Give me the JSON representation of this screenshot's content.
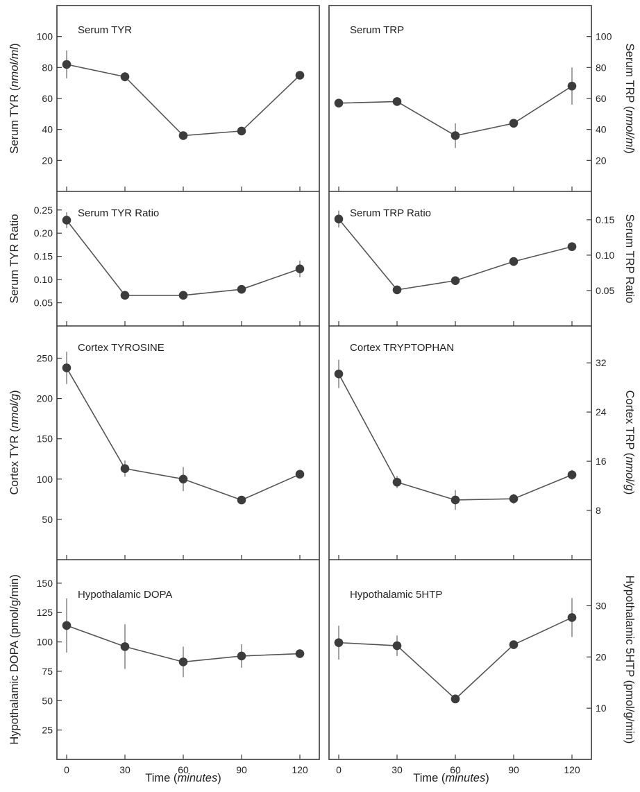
{
  "figure": {
    "x_axis_label": "Time",
    "x_axis_unit": "minutes"
  },
  "chart_data": [
    {
      "type": "line",
      "title": "Serum TYR",
      "ylabel": "Serum TYR (nmol/ml)",
      "x": [
        0,
        30,
        60,
        90,
        120
      ],
      "values": [
        82,
        74,
        36,
        39,
        75
      ],
      "error": [
        9,
        3,
        2,
        2,
        2
      ],
      "ylim": [
        0,
        120
      ],
      "yticks": [
        20,
        40,
        60,
        80,
        100
      ],
      "ytick_labels": [
        "20",
        "40",
        "60",
        "80",
        "100"
      ],
      "xlim": [
        -5,
        130
      ],
      "xticks": [
        0,
        30,
        60,
        90,
        120
      ]
    },
    {
      "type": "line",
      "title": "Serum TRP",
      "ylabel": "Serum TRP (nmol/ml)",
      "x": [
        0,
        30,
        60,
        90,
        120
      ],
      "values": [
        57,
        58,
        36,
        44,
        68
      ],
      "error": [
        2,
        2,
        8,
        2,
        12
      ],
      "ylim": [
        0,
        120
      ],
      "yticks": [
        20,
        40,
        60,
        80,
        100
      ],
      "ytick_labels": [
        "20",
        "40",
        "60",
        "80",
        "100"
      ],
      "xlim": [
        -5,
        130
      ],
      "xticks": [
        0,
        30,
        60,
        90,
        120
      ]
    },
    {
      "type": "line",
      "title": "Serum TYR Ratio",
      "ylabel": "Serum TYR Ratio",
      "x": [
        0,
        30,
        60,
        90,
        120
      ],
      "values": [
        0.228,
        0.066,
        0.066,
        0.079,
        0.123
      ],
      "error": [
        0.017,
        0.006,
        0.003,
        0.004,
        0.018
      ],
      "ylim": [
        0,
        0.29
      ],
      "yticks": [
        0.05,
        0.1,
        0.15,
        0.2,
        0.25
      ],
      "ytick_labels": [
        "0.05",
        "0.10",
        "0.15",
        "0.20",
        "0.25"
      ],
      "xlim": [
        -5,
        130
      ],
      "xticks": [
        0,
        30,
        60,
        90,
        120
      ]
    },
    {
      "type": "line",
      "title": "Serum TRP Ratio",
      "ylabel": "Serum TRP Ratio",
      "x": [
        0,
        30,
        60,
        90,
        120
      ],
      "values": [
        0.151,
        0.051,
        0.064,
        0.091,
        0.112
      ],
      "error": [
        0.012,
        0.003,
        0.006,
        0.003,
        0.003
      ],
      "ylim": [
        0,
        0.19
      ],
      "yticks": [
        0.05,
        0.1,
        0.15
      ],
      "ytick_labels": [
        "0.05",
        "0.10",
        "0.15"
      ],
      "xlim": [
        -5,
        130
      ],
      "xticks": [
        0,
        30,
        60,
        90,
        120
      ]
    },
    {
      "type": "line",
      "title": "Cortex TYROSINE",
      "ylabel": "Cortex TYR (nmol/g)",
      "x": [
        0,
        30,
        60,
        90,
        120
      ],
      "values": [
        238,
        113,
        100,
        74,
        106
      ],
      "error": [
        20,
        10,
        15,
        5,
        5
      ],
      "ylim": [
        0,
        290
      ],
      "yticks": [
        50,
        100,
        150,
        200,
        250
      ],
      "ytick_labels": [
        "50",
        "100",
        "150",
        "200",
        "250"
      ],
      "xlim": [
        -5,
        130
      ],
      "xticks": [
        0,
        30,
        60,
        90,
        120
      ]
    },
    {
      "type": "line",
      "title": "Cortex TRYPTOPHAN",
      "ylabel": "Cortex TRP (nmol/g)",
      "x": [
        0,
        30,
        60,
        90,
        120
      ],
      "values": [
        30.2,
        12.6,
        9.7,
        9.9,
        13.8
      ],
      "error": [
        2.3,
        1.0,
        1.6,
        0.8,
        0.8
      ],
      "ylim": [
        0,
        38
      ],
      "yticks": [
        8,
        16,
        24,
        32
      ],
      "ytick_labels": [
        "8",
        "16",
        "24",
        "32"
      ],
      "xlim": [
        -5,
        130
      ],
      "xticks": [
        0,
        30,
        60,
        90,
        120
      ]
    },
    {
      "type": "line",
      "title": "Hypothalamic DOPA",
      "ylabel": "Hypothalamic DOPA  (pmol/g/min)",
      "x": [
        0,
        30,
        60,
        90,
        120
      ],
      "values": [
        114,
        96,
        83,
        88,
        90
      ],
      "error": [
        23,
        19,
        13,
        10,
        3
      ],
      "ylim": [
        0,
        170
      ],
      "yticks": [
        25,
        50,
        75,
        100,
        125,
        150
      ],
      "ytick_labels": [
        "25",
        "50",
        "75",
        "100",
        "125",
        "150"
      ],
      "xlim": [
        -5,
        130
      ],
      "xticks": [
        0,
        30,
        60,
        90,
        120
      ],
      "xtick_labels": [
        "0",
        "30",
        "60",
        "90",
        "120"
      ]
    },
    {
      "type": "line",
      "title": "Hypothalamic 5HTP",
      "ylabel": "Hypothalamic 5HTP (pmol/g/min)",
      "x": [
        0,
        30,
        60,
        90,
        120
      ],
      "values": [
        22.8,
        22.2,
        11.8,
        22.4,
        27.7
      ],
      "error": [
        3.3,
        2.0,
        0.6,
        0.6,
        3.8
      ],
      "ylim": [
        0,
        39
      ],
      "yticks": [
        10,
        20,
        30
      ],
      "ytick_labels": [
        "10",
        "20",
        "30"
      ],
      "xlim": [
        -5,
        130
      ],
      "xticks": [
        0,
        30,
        60,
        90,
        120
      ],
      "xtick_labels": [
        "0",
        "30",
        "60",
        "90",
        "120"
      ]
    }
  ]
}
